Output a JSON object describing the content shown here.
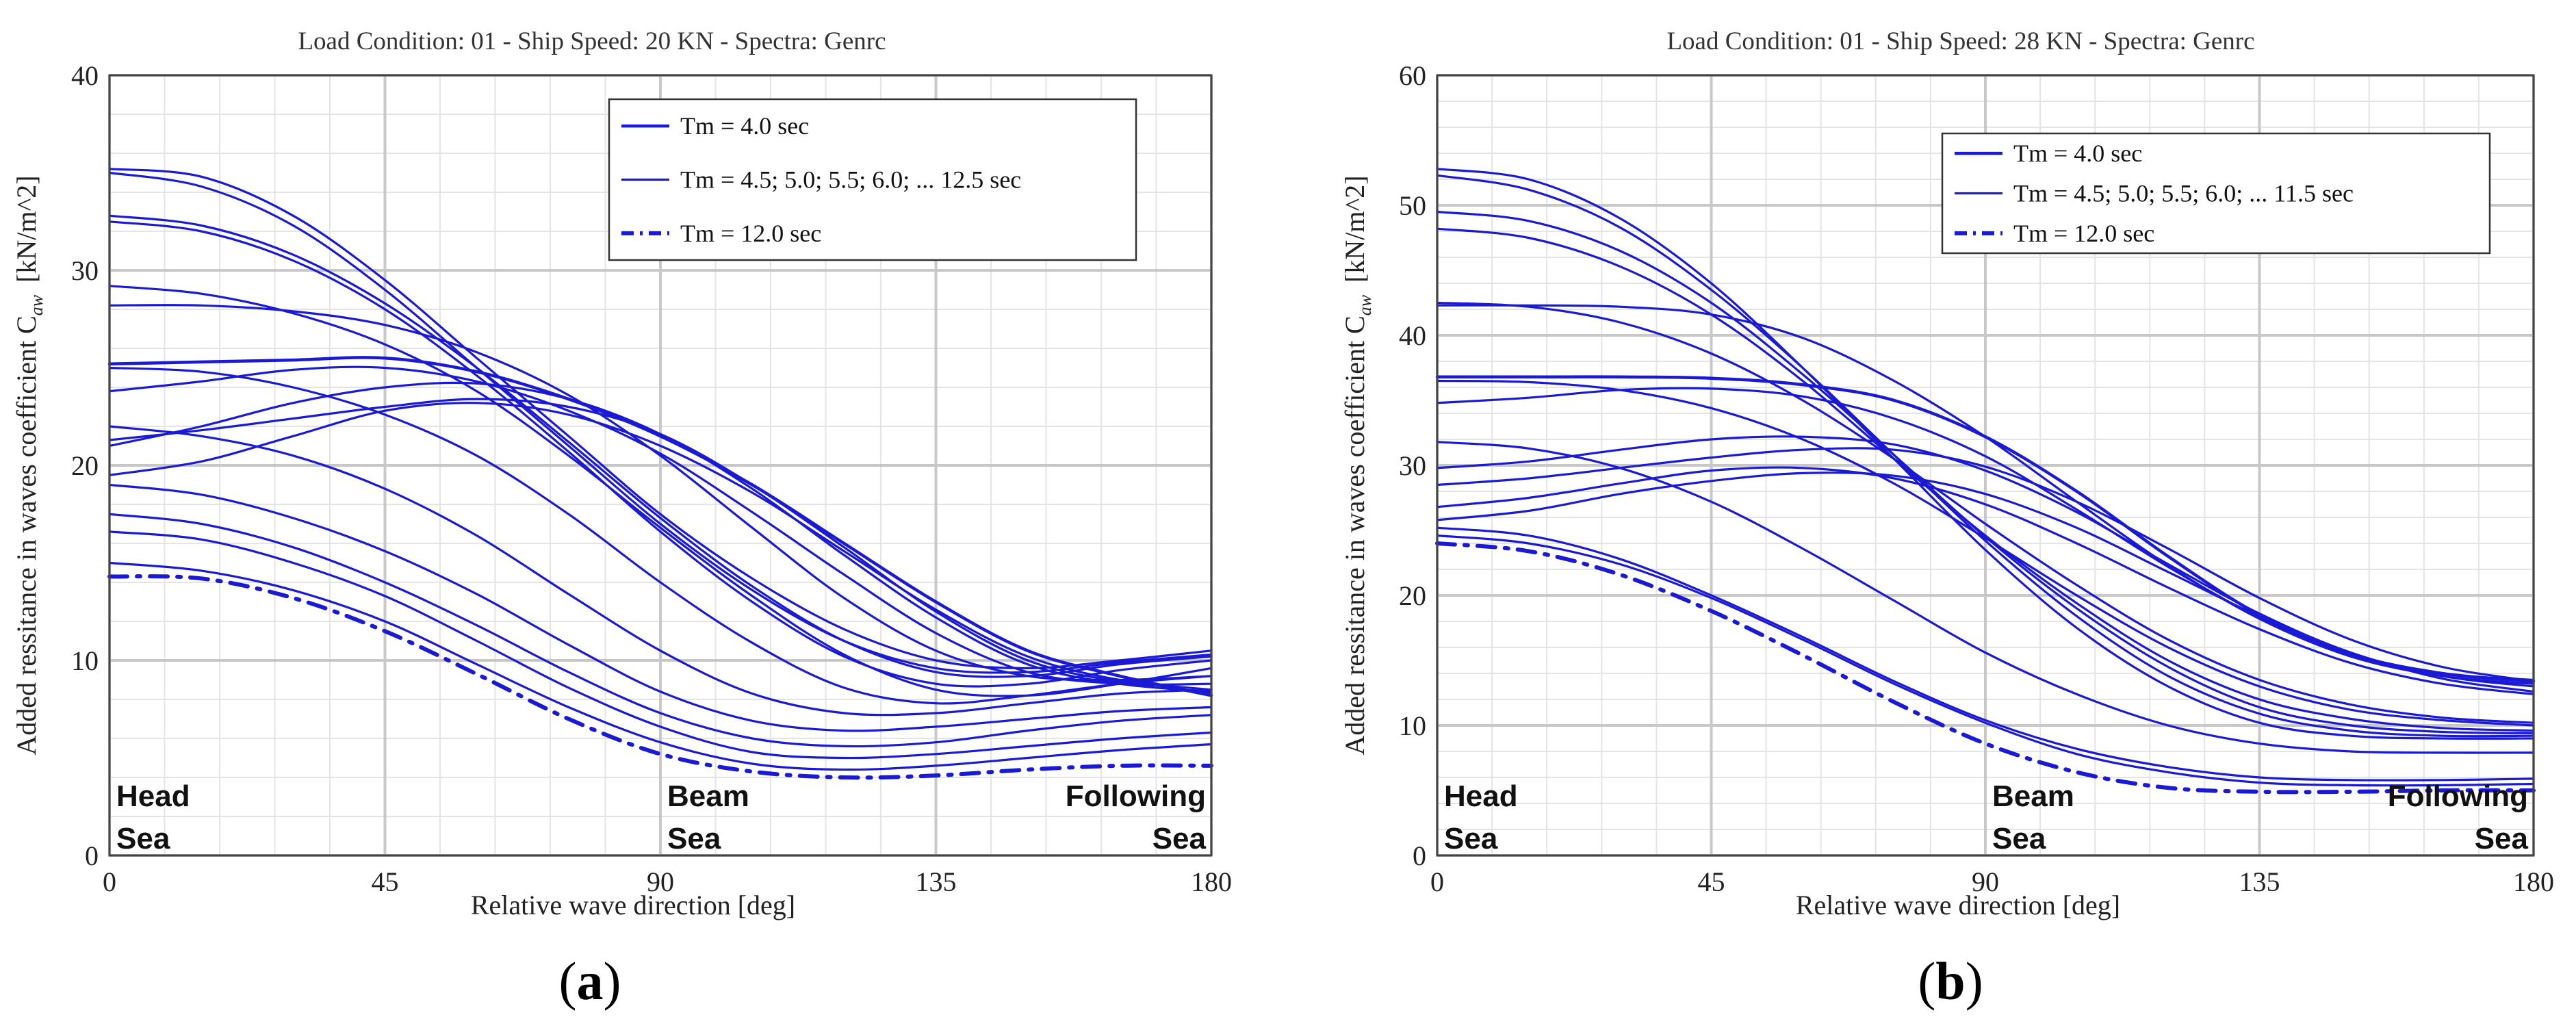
{
  "figure": {
    "panels": [
      {
        "caption": {
          "open": "(",
          "letter": "a",
          "close": ")"
        },
        "legend": [
          "Tm = 4.0 sec",
          "Tm = 4.5; 5.0; 5.5; 6.0; ... 12.5 sec",
          "Tm = 12.0 sec"
        ],
        "regions": [
          {
            "lines": [
              "Head",
              "Sea"
            ],
            "anchor": "start",
            "x": 0
          },
          {
            "lines": [
              "Beam",
              "Sea"
            ],
            "anchor": "start",
            "x": 90
          },
          {
            "lines": [
              "Following",
              "Sea"
            ],
            "anchor": "end",
            "x": 180
          }
        ]
      },
      {
        "caption": {
          "open": "(",
          "letter": "b",
          "close": ")"
        },
        "legend": [
          "Tm = 4.0 sec",
          "Tm = 4.5; 5.0; 5.5; 6.0; ... 11.5 sec",
          "Tm = 12.0 sec"
        ],
        "regions": [
          {
            "lines": [
              "Head",
              "Sea"
            ],
            "anchor": "start",
            "x": 0
          },
          {
            "lines": [
              "Beam",
              "Sea"
            ],
            "anchor": "start",
            "x": 90
          },
          {
            "lines": [
              "Following",
              "Sea"
            ],
            "anchor": "end",
            "x": 180
          }
        ]
      }
    ],
    "colors": {
      "line": "#1a1ad6",
      "grid_major": "#c8c8c8",
      "grid_minor": "#e4e4e4",
      "axis": "#444444"
    }
  },
  "chart_data": [
    {
      "type": "line",
      "title": "Load Condition: 01  -  Ship Speed: 20 KN  -  Spectra: Genrc",
      "xlabel": "Relative wave direction [deg]",
      "ylabel_main": "Added ressitance in waves coefficient C",
      "ylabel_sub": "aw",
      "ylabel_unit": "[kN/m^2]",
      "xlim": [
        0,
        180
      ],
      "ylim": [
        0,
        40
      ],
      "xticks": [
        0,
        45,
        90,
        135,
        180
      ],
      "yticks": [
        0,
        10,
        20,
        30,
        40
      ],
      "x": [
        0,
        15,
        30,
        45,
        60,
        75,
        90,
        105,
        120,
        135,
        150,
        165,
        180
      ],
      "series": [
        {
          "name": "Tm = 4.0 sec",
          "style": "solid-thick",
          "values": [
            25.2,
            25.3,
            25.4,
            25.5,
            24.8,
            23.4,
            21.5,
            19.0,
            16.0,
            13.0,
            10.5,
            9.2,
            8.2
          ]
        },
        {
          "name": "Tm = 4.5 sec",
          "style": "solid",
          "values": [
            35.2,
            34.8,
            32.8,
            29.5,
            25.5,
            21.5,
            17.5,
            14.2,
            11.6,
            10.0,
            9.6,
            10.0,
            10.5
          ]
        },
        {
          "name": "Tm = 5.0 sec",
          "style": "solid",
          "values": [
            35.0,
            34.3,
            32.3,
            29.0,
            25.0,
            21.0,
            17.0,
            13.6,
            11.0,
            9.6,
            9.4,
            9.9,
            10.3
          ]
        },
        {
          "name": "Tm = 5.5 sec",
          "style": "solid",
          "values": [
            32.8,
            32.3,
            30.8,
            28.3,
            25.0,
            21.2,
            17.3,
            13.8,
            11.0,
            9.4,
            9.2,
            9.8,
            10.2
          ]
        },
        {
          "name": "Tm = 6.0 sec",
          "style": "solid",
          "values": [
            32.5,
            32.0,
            30.5,
            28.0,
            24.6,
            20.7,
            16.6,
            13.0,
            10.2,
            8.8,
            8.8,
            9.5,
            10.0
          ]
        },
        {
          "name": "Tm = 6.5 sec",
          "style": "solid",
          "values": [
            29.2,
            28.8,
            27.8,
            26.2,
            23.8,
            20.5,
            16.8,
            13.3,
            10.3,
            8.5,
            8.2,
            8.8,
            9.6
          ]
        },
        {
          "name": "Tm = 7.0 sec",
          "style": "solid",
          "values": [
            28.2,
            28.2,
            27.9,
            27.2,
            25.8,
            23.6,
            20.5,
            16.8,
            13.2,
            10.5,
            9.2,
            9.0,
            9.2
          ]
        },
        {
          "name": "Tm = 7.5 sec",
          "style": "solid",
          "values": [
            25.0,
            24.8,
            24.0,
            22.6,
            20.5,
            17.5,
            14.0,
            10.9,
            8.6,
            7.8,
            8.2,
            8.8,
            9.2
          ]
        },
        {
          "name": "Tm = 8.0 sec",
          "style": "solid",
          "values": [
            23.8,
            24.3,
            24.9,
            25.0,
            24.3,
            22.8,
            20.6,
            17.6,
            14.4,
            11.4,
            9.4,
            8.8,
            8.8
          ]
        },
        {
          "name": "Tm = 8.5 sec",
          "style": "solid",
          "values": [
            22.0,
            21.5,
            20.5,
            18.8,
            16.4,
            13.4,
            10.5,
            8.3,
            7.3,
            7.3,
            7.8,
            8.3,
            8.5
          ]
        },
        {
          "name": "Tm = 9.0 sec",
          "style": "solid",
          "values": [
            21.0,
            22.0,
            23.2,
            24.0,
            24.2,
            23.4,
            21.6,
            18.8,
            15.4,
            12.2,
            9.8,
            8.8,
            8.4
          ]
        },
        {
          "name": "Tm = 9.5 sec",
          "style": "solid",
          "values": [
            21.3,
            21.8,
            22.4,
            23.0,
            23.4,
            23.0,
            21.6,
            19.0,
            15.8,
            12.5,
            10.0,
            8.9,
            8.3
          ]
        },
        {
          "name": "Tm = 10.0 sec",
          "style": "solid",
          "values": [
            19.5,
            20.2,
            21.5,
            22.8,
            23.2,
            22.6,
            21.0,
            18.6,
            15.6,
            12.6,
            10.2,
            9.0,
            8.5
          ]
        },
        {
          "name": "Tm = 10.5 sec",
          "style": "solid",
          "values": [
            19.0,
            18.5,
            17.3,
            15.6,
            13.4,
            10.8,
            8.4,
            6.9,
            6.4,
            6.6,
            7.0,
            7.4,
            7.6
          ]
        },
        {
          "name": "Tm = 11.0 sec",
          "style": "solid",
          "values": [
            17.5,
            17.0,
            15.8,
            14.0,
            11.8,
            9.4,
            7.3,
            6.0,
            5.6,
            5.8,
            6.4,
            6.9,
            7.2
          ]
        },
        {
          "name": "Tm = 11.5 sec",
          "style": "solid",
          "values": [
            16.6,
            16.2,
            15.0,
            13.3,
            11.0,
            8.6,
            6.6,
            5.3,
            5.0,
            5.2,
            5.6,
            6.0,
            6.3
          ]
        },
        {
          "name": "Tm = 12.0 sec",
          "style": "dashdot",
          "values": [
            14.3,
            14.2,
            13.2,
            11.5,
            9.3,
            7.0,
            5.2,
            4.3,
            4.0,
            4.1,
            4.4,
            4.6,
            4.6
          ]
        },
        {
          "name": "Tm = 12.5 sec",
          "style": "solid",
          "values": [
            15.0,
            14.6,
            13.6,
            12.0,
            9.8,
            7.6,
            5.8,
            4.7,
            4.4,
            4.6,
            5.0,
            5.4,
            5.7
          ]
        }
      ]
    },
    {
      "type": "line",
      "title": "Load Condition: 01  -  Ship Speed: 28 KN  -  Spectra: Genrc",
      "xlabel": "Relative wave direction [deg]",
      "ylabel_main": "Added ressitance in waves coefficient C",
      "ylabel_sub": "aw",
      "ylabel_unit": "[kN/m^2]",
      "xlim": [
        0,
        180
      ],
      "ylim": [
        0,
        60
      ],
      "xticks": [
        0,
        45,
        90,
        135,
        180
      ],
      "yticks": [
        0,
        10,
        20,
        30,
        40,
        50,
        60
      ],
      "x": [
        0,
        15,
        30,
        45,
        60,
        75,
        90,
        105,
        120,
        135,
        150,
        165,
        180
      ],
      "series": [
        {
          "name": "Tm = 4.0 sec",
          "style": "solid-thick",
          "values": [
            36.8,
            36.8,
            36.8,
            36.7,
            36.2,
            35.0,
            32.2,
            28.0,
            23.0,
            18.5,
            15.5,
            14.0,
            13.4
          ]
        },
        {
          "name": "Tm = 4.5 sec",
          "style": "solid",
          "values": [
            52.8,
            52.0,
            49.0,
            44.0,
            37.5,
            30.5,
            23.5,
            17.5,
            13.0,
            10.2,
            9.2,
            9.0,
            9.0
          ]
        },
        {
          "name": "Tm = 5.0 sec",
          "style": "solid",
          "values": [
            52.3,
            51.2,
            48.3,
            43.5,
            37.5,
            30.8,
            24.2,
            18.4,
            13.8,
            10.9,
            9.6,
            9.2,
            9.2
          ]
        },
        {
          "name": "Tm = 5.5 sec",
          "style": "solid",
          "values": [
            49.5,
            48.8,
            46.5,
            42.5,
            37.0,
            30.8,
            24.5,
            19.0,
            14.5,
            11.4,
            10.0,
            9.5,
            9.4
          ]
        },
        {
          "name": "Tm = 6.0 sec",
          "style": "solid",
          "values": [
            48.2,
            47.5,
            45.3,
            41.6,
            36.5,
            30.5,
            24.6,
            19.4,
            15.0,
            12.0,
            10.5,
            9.8,
            9.6
          ]
        },
        {
          "name": "Tm = 6.5 sec",
          "style": "solid",
          "values": [
            42.5,
            42.2,
            41.0,
            38.6,
            35.0,
            30.5,
            25.5,
            20.8,
            16.6,
            13.5,
            11.6,
            10.6,
            10.2
          ]
        },
        {
          "name": "Tm = 7.0 sec",
          "style": "solid",
          "values": [
            42.3,
            42.3,
            42.2,
            41.6,
            39.8,
            36.5,
            32.2,
            27.2,
            22.3,
            18.2,
            15.3,
            13.8,
            13.2
          ]
        },
        {
          "name": "Tm = 7.5 sec",
          "style": "solid",
          "values": [
            36.5,
            36.4,
            35.8,
            34.4,
            32.0,
            28.6,
            24.4,
            20.0,
            16.0,
            13.0,
            11.2,
            10.4,
            10.0
          ]
        },
        {
          "name": "Tm = 8.0 sec",
          "style": "solid",
          "values": [
            34.8,
            35.2,
            35.8,
            35.9,
            35.3,
            33.6,
            30.7,
            26.6,
            22.2,
            18.3,
            15.5,
            14.0,
            13.5
          ]
        },
        {
          "name": "Tm = 8.5 sec",
          "style": "solid",
          "values": [
            31.8,
            31.3,
            29.8,
            27.2,
            23.6,
            19.6,
            15.6,
            12.4,
            10.0,
            8.6,
            8.0,
            7.9,
            7.9
          ]
        },
        {
          "name": "Tm = 9.0 sec",
          "style": "solid",
          "values": [
            29.8,
            30.3,
            31.2,
            32.0,
            32.2,
            31.6,
            29.6,
            26.4,
            22.4,
            18.6,
            15.6,
            13.8,
            13.0
          ]
        },
        {
          "name": "Tm = 9.5 sec",
          "style": "solid",
          "values": [
            28.5,
            29.0,
            29.8,
            30.6,
            31.2,
            31.2,
            29.9,
            27.2,
            23.6,
            19.8,
            16.6,
            14.5,
            13.4
          ]
        },
        {
          "name": "Tm = 10.0 sec",
          "style": "solid",
          "values": [
            26.8,
            27.5,
            28.6,
            29.6,
            29.8,
            29.0,
            27.0,
            24.0,
            20.6,
            17.4,
            14.8,
            13.2,
            12.4
          ]
        },
        {
          "name": "Tm = 10.5 sec",
          "style": "solid",
          "values": [
            25.8,
            26.5,
            27.8,
            28.8,
            29.4,
            29.2,
            27.8,
            25.2,
            21.8,
            18.4,
            15.6,
            13.6,
            12.6
          ]
        },
        {
          "name": "Tm = 11.0 sec",
          "style": "solid",
          "values": [
            25.2,
            24.6,
            22.8,
            20.0,
            16.8,
            13.4,
            10.4,
            8.2,
            6.8,
            6.0,
            5.8,
            5.8,
            5.9
          ]
        },
        {
          "name": "Tm = 11.5 sec",
          "style": "solid",
          "values": [
            24.6,
            24.0,
            22.4,
            19.8,
            16.6,
            13.2,
            10.2,
            7.8,
            6.4,
            5.6,
            5.4,
            5.4,
            5.5
          ]
        },
        {
          "name": "Tm = 12.0 sec",
          "style": "dashdot",
          "values": [
            24.0,
            23.4,
            21.6,
            18.8,
            15.4,
            11.8,
            8.6,
            6.4,
            5.2,
            4.9,
            4.9,
            5.0,
            5.0
          ]
        }
      ]
    }
  ]
}
